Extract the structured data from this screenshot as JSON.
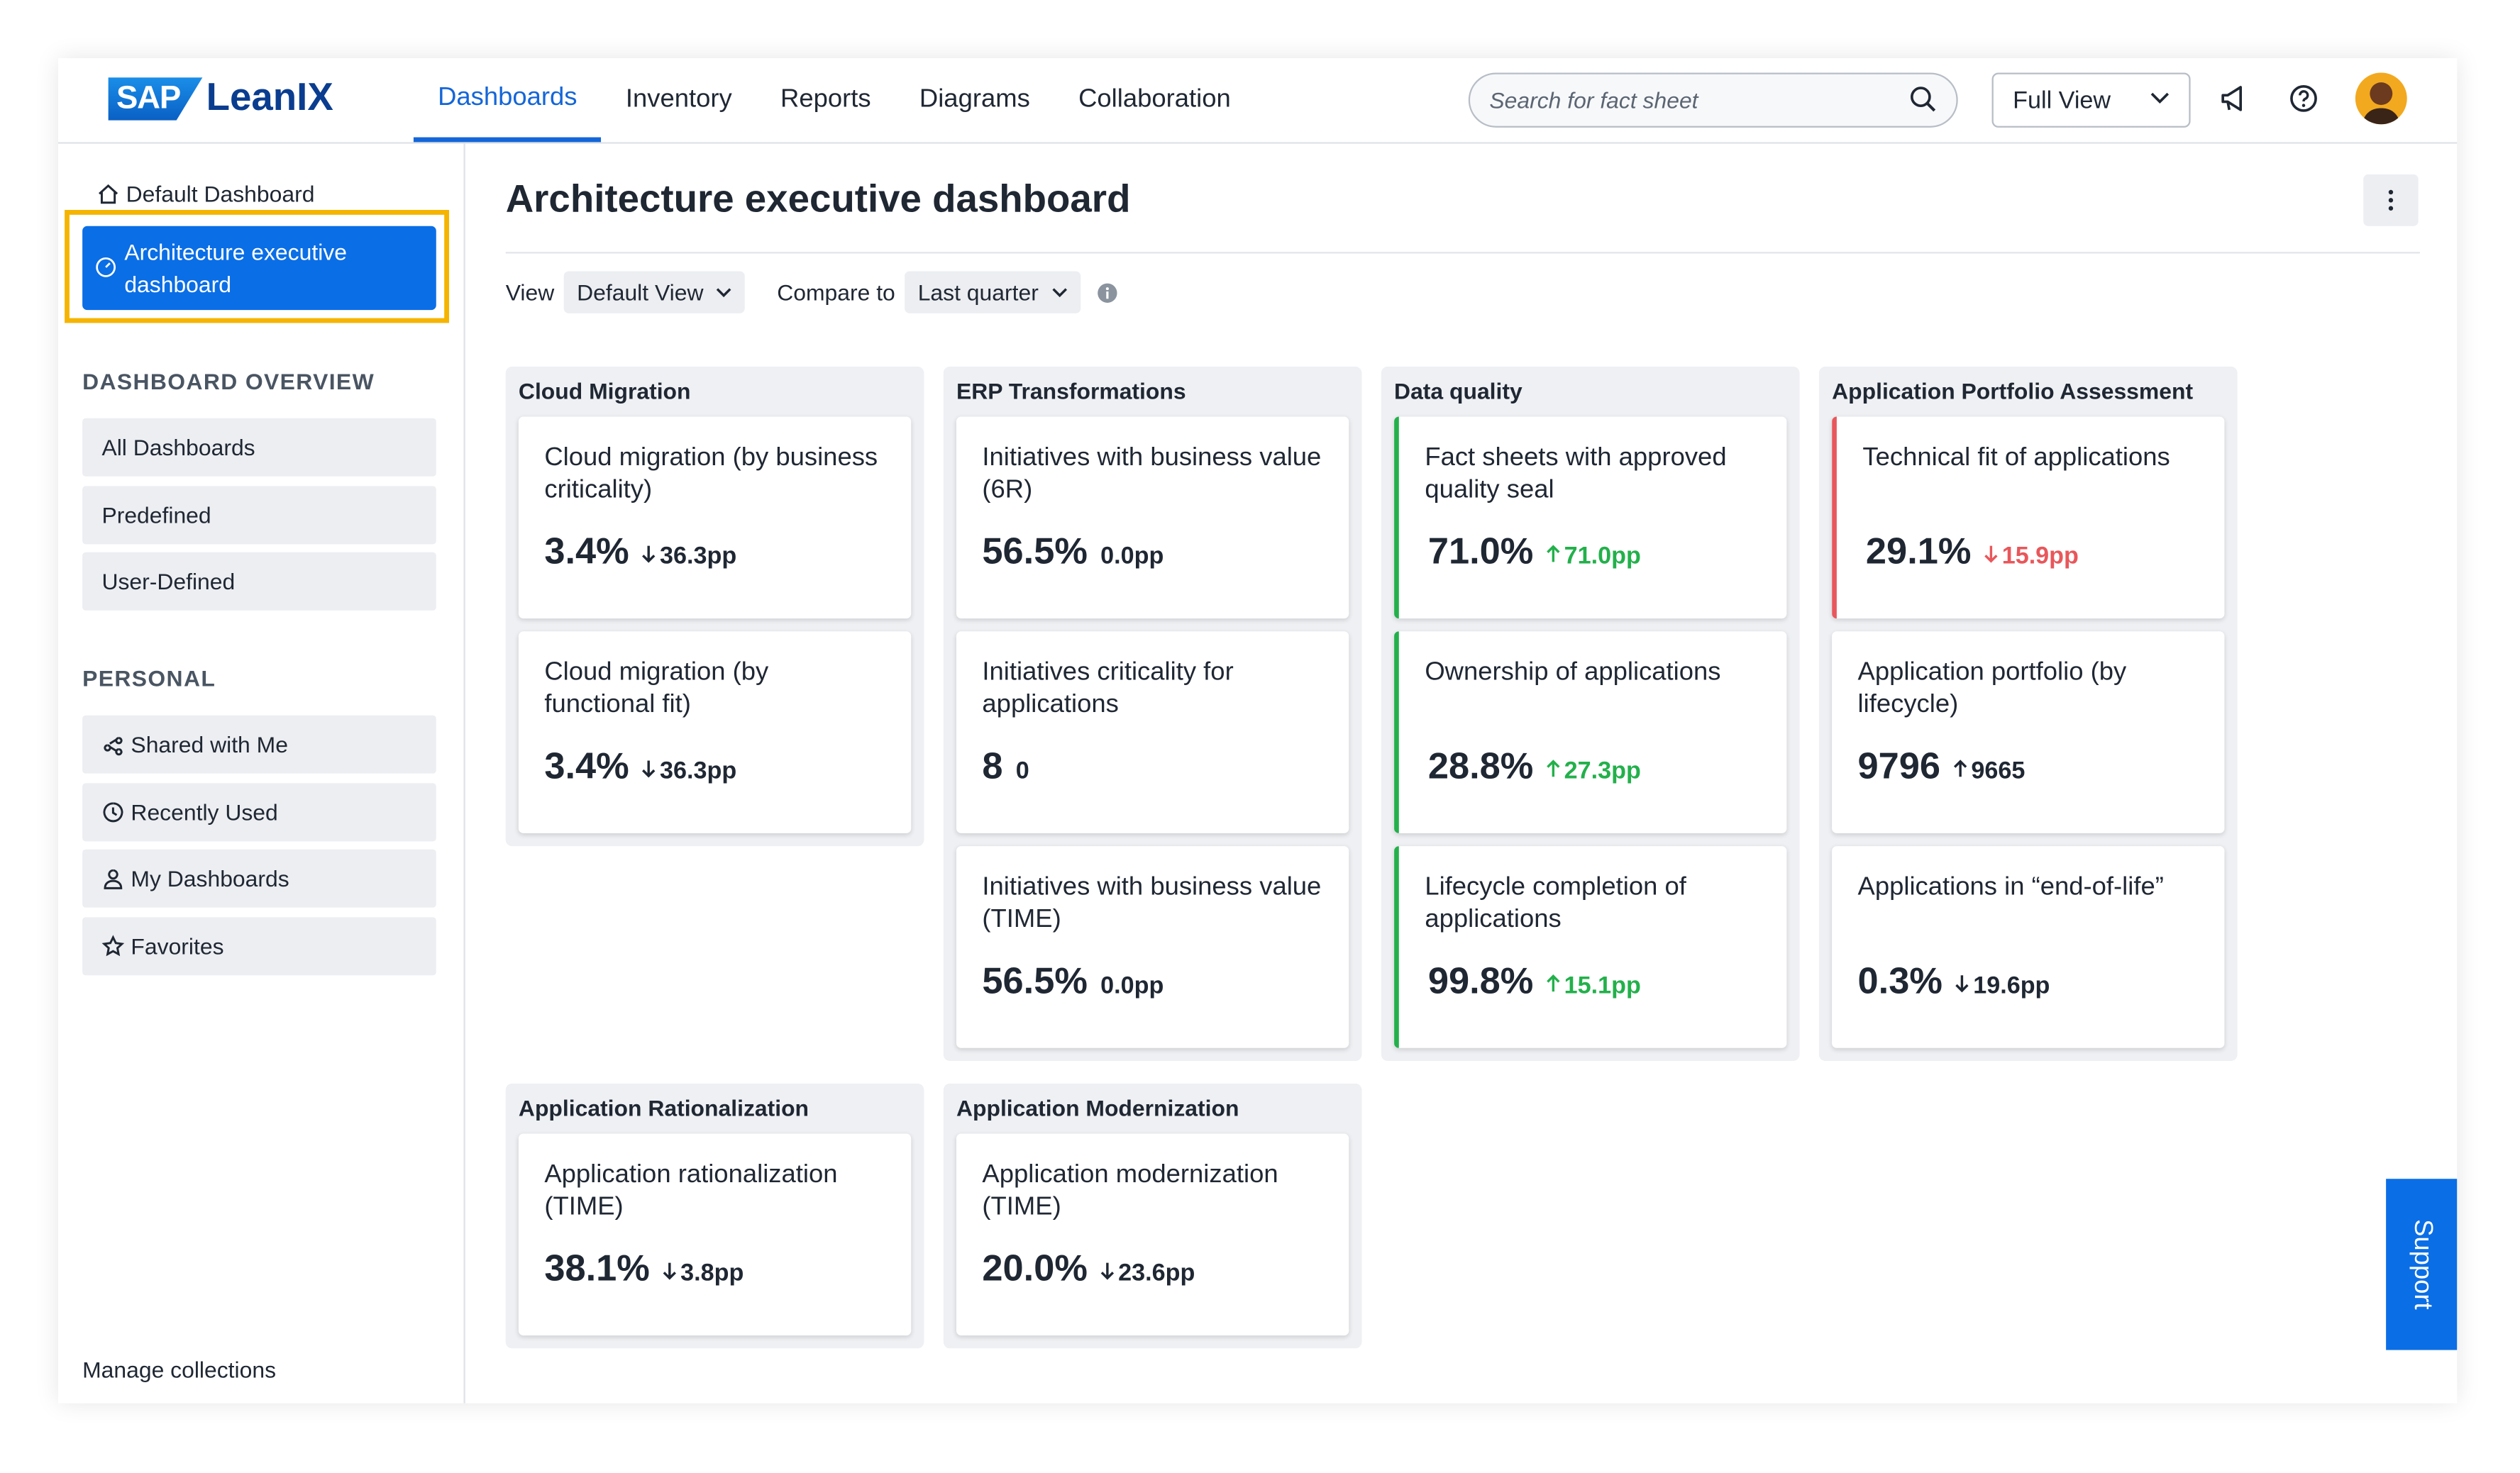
{
  "header": {
    "logo_sap": "SAP",
    "logo_product": "LeanIX",
    "nav": [
      "Dashboards",
      "Inventory",
      "Reports",
      "Diagrams",
      "Collaboration"
    ],
    "active_nav": 0,
    "search_placeholder": "Search for fact sheet",
    "view_select": "Full View"
  },
  "sidebar": {
    "default_dashboard": "Default Dashboard",
    "selected": "Architecture executive dashboard",
    "overview_heading": "DASHBOARD OVERVIEW",
    "overview_items": [
      "All Dashboards",
      "Predefined",
      "User-Defined"
    ],
    "personal_heading": "PERSONAL",
    "personal_items": [
      "Shared with Me",
      "Recently Used",
      "My Dashboards",
      "Favorites"
    ],
    "footer": "Manage collections"
  },
  "main": {
    "title": "Architecture executive dashboard",
    "view_label": "View",
    "view_value": "Default View",
    "compare_label": "Compare to",
    "compare_value": "Last quarter",
    "groups": [
      {
        "title": "Cloud Migration",
        "cards": [
          {
            "title": "Cloud migration (by business criticality)",
            "value": "3.4%",
            "delta": "36.3pp",
            "trend": "down",
            "tone": "neutral"
          },
          {
            "title": "Cloud migration (by functional fit)",
            "value": "3.4%",
            "delta": "36.3pp",
            "trend": "down",
            "tone": "neutral"
          }
        ]
      },
      {
        "title": "ERP Transformations",
        "cards": [
          {
            "title": "Initiatives with business value (6R)",
            "value": "56.5%",
            "delta": "0.0pp",
            "trend": "none",
            "tone": "neutral"
          },
          {
            "title": "Initiatives criticality for applications",
            "value": "8",
            "delta": "0",
            "trend": "none",
            "tone": "neutral"
          },
          {
            "title": "Initiatives with business value (TIME)",
            "value": "56.5%",
            "delta": "0.0pp",
            "trend": "none",
            "tone": "neutral"
          }
        ]
      },
      {
        "title": "Data quality",
        "cards": [
          {
            "title": "Fact sheets with approved quality seal",
            "value": "71.0%",
            "delta": "71.0pp",
            "trend": "up",
            "tone": "green"
          },
          {
            "title": "Ownership of applications",
            "value": "28.8%",
            "delta": "27.3pp",
            "trend": "up",
            "tone": "green"
          },
          {
            "title": "Lifecycle completion of applications",
            "value": "99.8%",
            "delta": "15.1pp",
            "trend": "up",
            "tone": "green"
          }
        ]
      },
      {
        "title": "Application Portfolio Assessment",
        "cards": [
          {
            "title": "Technical fit of applications",
            "value": "29.1%",
            "delta": "15.9pp",
            "trend": "down",
            "tone": "red"
          },
          {
            "title": "Application portfolio (by lifecycle)",
            "value": "9796",
            "delta": "9665",
            "trend": "up",
            "tone": "neutral"
          },
          {
            "title": "Applications in “end-of-life”",
            "value": "0.3%",
            "delta": "19.6pp",
            "trend": "down",
            "tone": "neutral"
          }
        ]
      },
      {
        "title": "Application Rationalization",
        "cards": [
          {
            "title": "Application rationalization (TIME)",
            "value": "38.1%",
            "delta": "3.8pp",
            "trend": "down",
            "tone": "neutral"
          }
        ]
      },
      {
        "title": "Application Modernization",
        "cards": [
          {
            "title": "Application modernization (TIME)",
            "value": "20.0%",
            "delta": "23.6pp",
            "trend": "down",
            "tone": "neutral"
          }
        ]
      }
    ]
  },
  "support": "Support"
}
